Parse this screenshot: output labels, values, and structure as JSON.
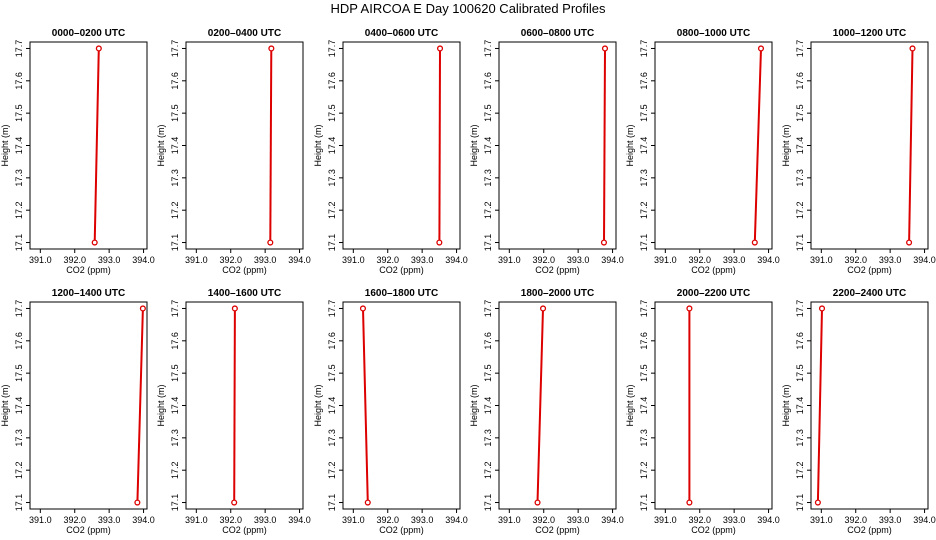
{
  "figure_title": "HDP AIRCOA E  Day 100620  Calibrated Profiles",
  "colors": {
    "profile": "#dd0000",
    "axes": "#000000"
  },
  "chart_data": [
    {
      "type": "line",
      "title": "0000–0200 UTC",
      "xlabel": "CO2 (ppm)",
      "ylabel": "Height (m)",
      "xlim": [
        390.7,
        394.1
      ],
      "ylim": [
        17.08,
        17.72
      ],
      "xticks": [
        "391.0",
        "392.0",
        "393.0",
        "394.0"
      ],
      "yticks": [
        "17.1",
        "17.2",
        "17.3",
        "17.4",
        "17.5",
        "17.6",
        "17.7"
      ],
      "x": [
        392.58,
        392.7
      ],
      "y": [
        17.1,
        17.7
      ]
    },
    {
      "type": "line",
      "title": "0200–0400 UTC",
      "xlabel": "CO2 (ppm)",
      "ylabel": "Height (m)",
      "xlim": [
        390.7,
        394.1
      ],
      "ylim": [
        17.08,
        17.72
      ],
      "xticks": [
        "391.0",
        "392.0",
        "393.0",
        "394.0"
      ],
      "yticks": [
        "17.1",
        "17.2",
        "17.3",
        "17.4",
        "17.5",
        "17.6",
        "17.7"
      ],
      "x": [
        393.15,
        393.18
      ],
      "y": [
        17.1,
        17.7
      ]
    },
    {
      "type": "line",
      "title": "0400–0600 UTC",
      "xlabel": "CO2 (ppm)",
      "ylabel": "Height (m)",
      "xlim": [
        390.7,
        394.1
      ],
      "ylim": [
        17.08,
        17.72
      ],
      "xticks": [
        "391.0",
        "392.0",
        "393.0",
        "394.0"
      ],
      "yticks": [
        "17.1",
        "17.2",
        "17.3",
        "17.4",
        "17.5",
        "17.6",
        "17.7"
      ],
      "x": [
        393.5,
        393.52
      ],
      "y": [
        17.1,
        17.7
      ]
    },
    {
      "type": "line",
      "title": "0600–0800 UTC",
      "xlabel": "CO2 (ppm)",
      "ylabel": "Height (m)",
      "xlim": [
        390.7,
        394.1
      ],
      "ylim": [
        17.08,
        17.72
      ],
      "xticks": [
        "391.0",
        "392.0",
        "393.0",
        "394.0"
      ],
      "yticks": [
        "17.1",
        "17.2",
        "17.3",
        "17.4",
        "17.5",
        "17.6",
        "17.7"
      ],
      "x": [
        393.75,
        393.78
      ],
      "y": [
        17.1,
        17.7
      ]
    },
    {
      "type": "line",
      "title": "0800–1000 UTC",
      "xlabel": "CO2 (ppm)",
      "ylabel": "Height (m)",
      "xlim": [
        390.7,
        394.1
      ],
      "ylim": [
        17.08,
        17.72
      ],
      "xticks": [
        "391.0",
        "392.0",
        "393.0",
        "394.0"
      ],
      "yticks": [
        "17.1",
        "17.2",
        "17.3",
        "17.4",
        "17.5",
        "17.6",
        "17.7"
      ],
      "x": [
        393.6,
        393.78
      ],
      "y": [
        17.1,
        17.7
      ]
    },
    {
      "type": "line",
      "title": "1000–1200 UTC",
      "xlabel": "CO2 (ppm)",
      "ylabel": "Height (m)",
      "xlim": [
        390.7,
        394.1
      ],
      "ylim": [
        17.08,
        17.72
      ],
      "xticks": [
        "391.0",
        "392.0",
        "393.0",
        "394.0"
      ],
      "yticks": [
        "17.1",
        "17.2",
        "17.3",
        "17.4",
        "17.5",
        "17.6",
        "17.7"
      ],
      "x": [
        393.55,
        393.65
      ],
      "y": [
        17.1,
        17.7
      ]
    },
    {
      "type": "line",
      "title": "1200–1400 UTC",
      "xlabel": "CO2 (ppm)",
      "ylabel": "Height (m)",
      "xlim": [
        390.7,
        394.1
      ],
      "ylim": [
        17.08,
        17.72
      ],
      "xticks": [
        "391.0",
        "392.0",
        "393.0",
        "394.0"
      ],
      "yticks": [
        "17.1",
        "17.2",
        "17.3",
        "17.4",
        "17.5",
        "17.6",
        "17.7"
      ],
      "x": [
        393.82,
        393.98
      ],
      "y": [
        17.1,
        17.7
      ]
    },
    {
      "type": "line",
      "title": "1400–1600 UTC",
      "xlabel": "CO2 (ppm)",
      "ylabel": "Height (m)",
      "xlim": [
        390.7,
        394.1
      ],
      "ylim": [
        17.08,
        17.72
      ],
      "xticks": [
        "391.0",
        "392.0",
        "393.0",
        "394.0"
      ],
      "yticks": [
        "17.1",
        "17.2",
        "17.3",
        "17.4",
        "17.5",
        "17.6",
        "17.7"
      ],
      "x": [
        392.1,
        392.12
      ],
      "y": [
        17.1,
        17.7
      ]
    },
    {
      "type": "line",
      "title": "1600–1800 UTC",
      "xlabel": "CO2 (ppm)",
      "ylabel": "Height (m)",
      "xlim": [
        390.7,
        394.1
      ],
      "ylim": [
        17.08,
        17.72
      ],
      "xticks": [
        "391.0",
        "392.0",
        "393.0",
        "394.0"
      ],
      "yticks": [
        "17.1",
        "17.2",
        "17.3",
        "17.4",
        "17.5",
        "17.6",
        "17.7"
      ],
      "x": [
        391.42,
        391.28
      ],
      "y": [
        17.1,
        17.7
      ]
    },
    {
      "type": "line",
      "title": "1800–2000 UTC",
      "xlabel": "CO2 (ppm)",
      "ylabel": "Height (m)",
      "xlim": [
        390.7,
        394.1
      ],
      "ylim": [
        17.08,
        17.72
      ],
      "xticks": [
        "391.0",
        "392.0",
        "393.0",
        "394.0"
      ],
      "yticks": [
        "17.1",
        "17.2",
        "17.3",
        "17.4",
        "17.5",
        "17.6",
        "17.7"
      ],
      "x": [
        391.82,
        391.98
      ],
      "y": [
        17.1,
        17.7
      ]
    },
    {
      "type": "line",
      "title": "2000–2200 UTC",
      "xlabel": "CO2 (ppm)",
      "ylabel": "Height (m)",
      "xlim": [
        390.7,
        394.1
      ],
      "ylim": [
        17.08,
        17.72
      ],
      "xticks": [
        "391.0",
        "392.0",
        "393.0",
        "394.0"
      ],
      "yticks": [
        "17.1",
        "17.2",
        "17.3",
        "17.4",
        "17.5",
        "17.6",
        "17.7"
      ],
      "x": [
        391.7,
        391.7
      ],
      "y": [
        17.1,
        17.7
      ]
    },
    {
      "type": "line",
      "title": "2200–2400 UTC",
      "xlabel": "CO2 (ppm)",
      "ylabel": "Height (m)",
      "xlim": [
        390.7,
        394.1
      ],
      "ylim": [
        17.08,
        17.72
      ],
      "xticks": [
        "391.0",
        "392.0",
        "393.0",
        "394.0"
      ],
      "yticks": [
        "17.1",
        "17.2",
        "17.3",
        "17.4",
        "17.5",
        "17.6",
        "17.7"
      ],
      "x": [
        390.9,
        391.02
      ],
      "y": [
        17.1,
        17.7
      ]
    }
  ]
}
